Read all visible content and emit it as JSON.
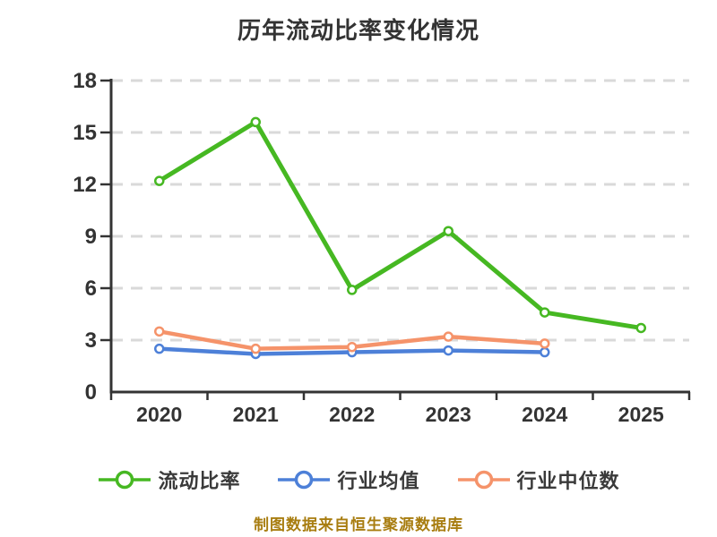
{
  "title": "历年流动比率变化情况",
  "chart_data": {
    "type": "line",
    "title": "历年流动比率变化情况",
    "categories": [
      "2020",
      "2021",
      "2022",
      "2023",
      "2024",
      "2025"
    ],
    "series": [
      {
        "name": "流动比率",
        "color": "#46b822",
        "line_width": 5,
        "values": [
          12.2,
          15.6,
          5.9,
          9.3,
          4.6,
          3.7
        ]
      },
      {
        "name": "行业均值",
        "color": "#4d80d8",
        "line_width": 4.5,
        "values": [
          2.5,
          2.2,
          2.3,
          2.4,
          2.3
        ]
      },
      {
        "name": "行业中位数",
        "color": "#f5936a",
        "line_width": 4.5,
        "values": [
          3.5,
          2.5,
          2.6,
          3.2,
          2.8
        ]
      }
    ],
    "xlabel": "",
    "ylabel": "",
    "ylim": [
      0,
      18
    ],
    "yticks": [
      0,
      3,
      6,
      9,
      12,
      15,
      18
    ],
    "grid": "horizontal-dashed",
    "legend_position": "bottom",
    "marker": "circle-white-fill",
    "colors": {
      "axis": "#333333",
      "tick_label": "#333333",
      "gridline": "#d9d9d9",
      "title_text": "#333333",
      "legend_text": "#3a3a3a"
    }
  },
  "footer": {
    "caption": "制图数据来自恒生聚源数据库",
    "color": "#a87d10"
  }
}
